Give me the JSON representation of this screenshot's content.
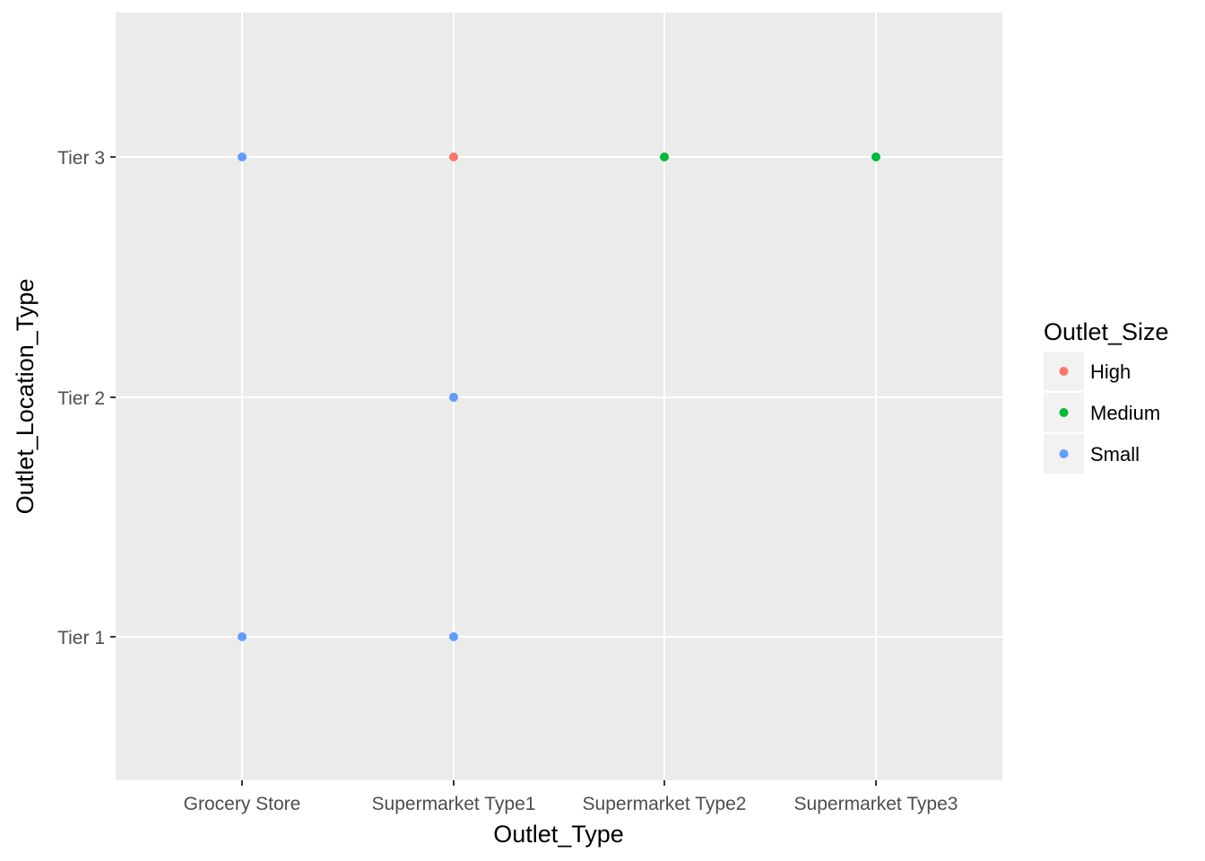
{
  "chart_data": {
    "type": "scatter",
    "xlabel": "Outlet_Type",
    "ylabel": "Outlet_Location_Type",
    "x_categories": [
      "Grocery Store",
      "Supermarket Type1",
      "Supermarket Type2",
      "Supermarket Type3"
    ],
    "y_categories": [
      "Tier 1",
      "Tier 2",
      "Tier 3"
    ],
    "grid": true,
    "legend": {
      "title": "Outlet_Size",
      "placement": "right",
      "entries": [
        {
          "name": "High",
          "color": "#F8766D"
        },
        {
          "name": "Medium",
          "color": "#00BA38"
        },
        {
          "name": "Small",
          "color": "#619CFF"
        }
      ]
    },
    "points": [
      {
        "x": "Grocery Store",
        "y": "Tier 3",
        "size": "Small"
      },
      {
        "x": "Grocery Store",
        "y": "Tier 1",
        "size": "Small"
      },
      {
        "x": "Supermarket Type1",
        "y": "Tier 3",
        "size": "High"
      },
      {
        "x": "Supermarket Type1",
        "y": "Tier 2",
        "size": "Small"
      },
      {
        "x": "Supermarket Type1",
        "y": "Tier 1",
        "size": "Small"
      },
      {
        "x": "Supermarket Type2",
        "y": "Tier 3",
        "size": "Medium"
      },
      {
        "x": "Supermarket Type3",
        "y": "Tier 3",
        "size": "Medium"
      }
    ]
  },
  "colors": {
    "panel_background": "#EBEBEB",
    "grid_line": "#FFFFFF",
    "tick_text": "#4D4D4D",
    "axis_tick": "#333333",
    "legend_key_background": "#F2F2F2"
  }
}
